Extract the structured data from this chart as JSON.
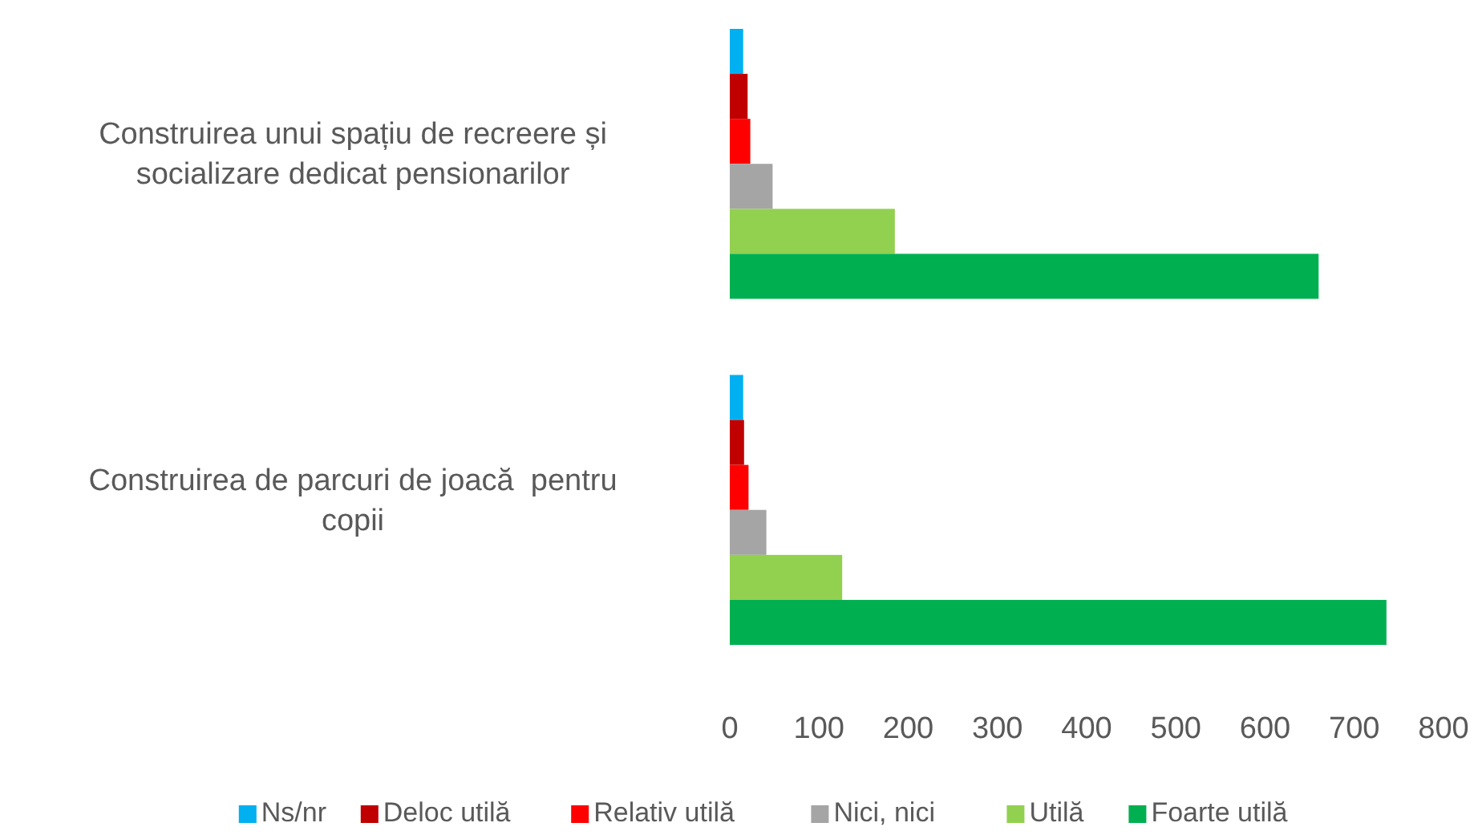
{
  "chart_data": {
    "type": "bar",
    "orientation": "horizontal",
    "categories": [
      "Construirea unui spațiu de recreere și socializare dedicat pensionarilor",
      "Construirea de parcuri de joacă  pentru copii"
    ],
    "series": [
      {
        "name": "Ns/nr",
        "color": "#00b0f0",
        "values": [
          15,
          15
        ]
      },
      {
        "name": "Deloc utilă",
        "color": "#c00000",
        "values": [
          20,
          16
        ]
      },
      {
        "name": "Relativ utilă",
        "color": "#ff0000",
        "values": [
          23,
          21
        ]
      },
      {
        "name": "Nici, nici",
        "color": "#a5a5a5",
        "values": [
          48,
          41
        ]
      },
      {
        "name": "Utilă",
        "color": "#92d050",
        "values": [
          185,
          126
        ]
      },
      {
        "name": "Foarte utilă",
        "color": "#00b050",
        "values": [
          660,
          736
        ]
      }
    ],
    "xlim": [
      0,
      800
    ],
    "xticks": [
      0,
      100,
      200,
      300,
      400,
      500,
      600,
      700,
      800
    ],
    "grid": false,
    "legend": "bottom"
  }
}
